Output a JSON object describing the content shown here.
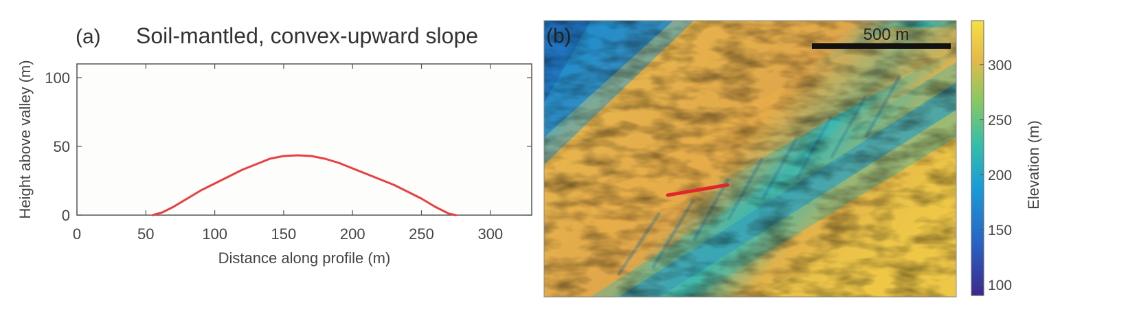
{
  "chart_data": [
    {
      "type": "line",
      "panel_label": "(a)",
      "title": "Soil-mantled, convex-upward slope",
      "xlabel": "Distance along profile (m)",
      "ylabel": "Height above valley (m)",
      "xlim": [
        0,
        330
      ],
      "ylim": [
        0,
        110
      ],
      "xticks": [
        0,
        50,
        100,
        150,
        200,
        250,
        300
      ],
      "yticks": [
        0,
        50,
        100
      ],
      "grid": false,
      "series": [
        {
          "color": "#e8403f",
          "x": [
            55,
            62,
            70,
            80,
            90,
            100,
            110,
            120,
            130,
            140,
            150,
            160,
            170,
            180,
            190,
            200,
            210,
            220,
            230,
            240,
            250,
            260,
            270,
            275
          ],
          "y": [
            0,
            2,
            6,
            12,
            18,
            23,
            28,
            33,
            37,
            41,
            43,
            43.5,
            43,
            41,
            38,
            34,
            30,
            26,
            22,
            17,
            12,
            6,
            1,
            0
          ]
        }
      ]
    },
    {
      "type": "heatmap",
      "panel_label": "(b)",
      "scale_bar": "500 m",
      "colorbar_label": "Elevation (m)",
      "colorbar_range": [
        90,
        340
      ],
      "colorbar_ticks": [
        100,
        150,
        200,
        250,
        300
      ],
      "colormap": [
        "#3b2a8c",
        "#2765c7",
        "#1a9ed6",
        "#35bfa8",
        "#8fc85f",
        "#e5b94a",
        "#f5e042"
      ],
      "profile_line_color": "#e3262b"
    }
  ]
}
